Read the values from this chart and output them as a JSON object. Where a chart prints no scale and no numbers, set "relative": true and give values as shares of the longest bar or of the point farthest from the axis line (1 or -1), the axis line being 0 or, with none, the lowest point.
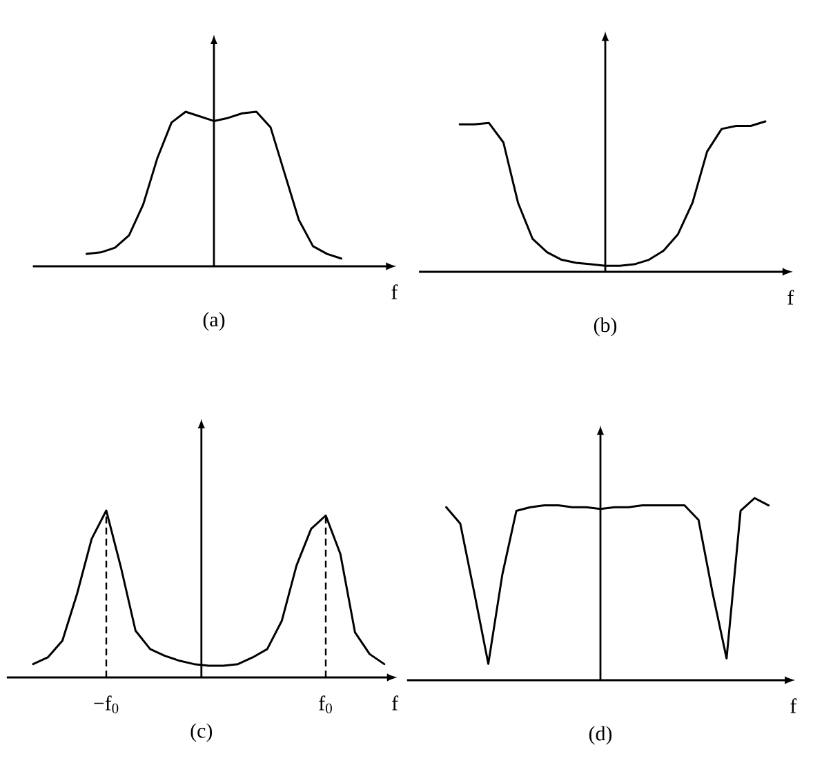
{
  "chart_data": [
    {
      "type": "line",
      "title": "(a)",
      "xlabel": "f",
      "relative": true,
      "categories": [
        null,
        null,
        null,
        null,
        null,
        null,
        null,
        null,
        null,
        null,
        null,
        null,
        null,
        null,
        null,
        null,
        null,
        null,
        null,
        null,
        null,
        null,
        null,
        null,
        null
      ],
      "series": [
        {
          "color": "#000000",
          "values": [
            null,
            null,
            null,
            0.08,
            0.09,
            0.12,
            0.2,
            0.4,
            0.7,
            0.93,
            1.0,
            0.97,
            0.94,
            0.96,
            0.99,
            1.0,
            0.9,
            0.6,
            0.3,
            0.13,
            0.08,
            0.05,
            null,
            null,
            null
          ]
        }
      ]
    },
    {
      "type": "line",
      "title": "(b)",
      "xlabel": "f",
      "relative": true,
      "categories": [
        null,
        null,
        null,
        null,
        null,
        null,
        null,
        null,
        null,
        null,
        null,
        null,
        null,
        null,
        null,
        null,
        null,
        null,
        null,
        null,
        null,
        null,
        null,
        null,
        null
      ],
      "series": [
        {
          "color": "#000000",
          "values": [
            null,
            null,
            0.98,
            0.98,
            0.99,
            0.86,
            0.46,
            0.22,
            0.13,
            0.08,
            0.06,
            0.05,
            0.04,
            0.04,
            0.05,
            0.08,
            0.14,
            0.25,
            0.46,
            0.8,
            0.95,
            0.97,
            0.97,
            1.0,
            null
          ]
        }
      ]
    },
    {
      "type": "line",
      "title": "(c)",
      "xlabel": "f",
      "relative": true,
      "categories": [
        null,
        null,
        null,
        null,
        null,
        null,
        "−f$_{0}$",
        null,
        null,
        null,
        null,
        null,
        null,
        null,
        null,
        null,
        null,
        null,
        null,
        null,
        null,
        "f$_{0}$",
        null,
        null,
        null,
        null
      ],
      "series": [
        {
          "color": "#000000",
          "values": [
            null,
            0.08,
            0.12,
            0.22,
            0.5,
            0.83,
            1.0,
            0.66,
            0.28,
            0.17,
            0.13,
            0.1,
            0.08,
            0.07,
            0.07,
            0.08,
            0.12,
            0.17,
            0.34,
            0.67,
            0.89,
            0.97,
            0.74,
            0.27,
            0.14,
            0.08
          ]
        }
      ],
      "ref_lines": [
        {
          "axis": "x",
          "value": "−f$_{0}$",
          "line_style": "dashed"
        },
        {
          "axis": "x",
          "value": "f$_{0}$",
          "line_style": "dashed"
        }
      ]
    },
    {
      "type": "line",
      "title": "(d)",
      "xlabel": "f",
      "relative": true,
      "categories": [
        null,
        null,
        null,
        null,
        null,
        null,
        null,
        null,
        null,
        null,
        null,
        null,
        null,
        null,
        null,
        null,
        null,
        null,
        null,
        null,
        null,
        null,
        null,
        null,
        null,
        null,
        null
      ],
      "series": [
        {
          "color": "#000000",
          "values": [
            null,
            null,
            0.95,
            0.86,
            0.48,
            0.09,
            0.58,
            0.93,
            0.95,
            0.96,
            0.96,
            0.95,
            0.95,
            0.94,
            0.95,
            0.95,
            0.96,
            0.96,
            0.96,
            0.96,
            0.88,
            0.48,
            0.12,
            0.93,
            1.0,
            0.96,
            null
          ]
        }
      ]
    }
  ]
}
